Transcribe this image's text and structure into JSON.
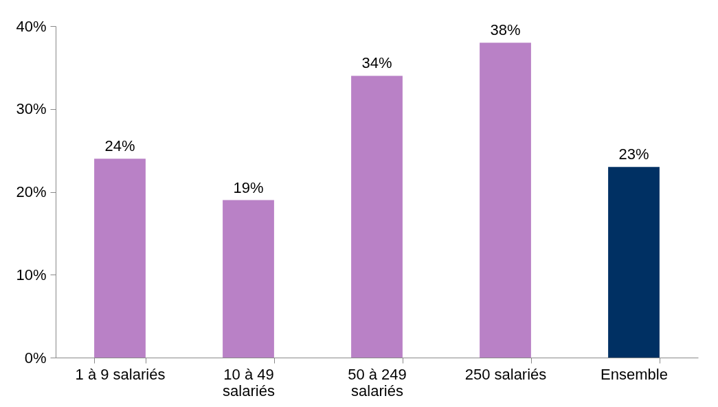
{
  "chart_data": {
    "type": "bar",
    "categories": [
      "1 à 9 salariés",
      "10 à 49 salariés",
      "50 à 249 salariés",
      "250 salariés",
      "Ensemble"
    ],
    "values": [
      24,
      19,
      34,
      38,
      23
    ],
    "colors": [
      "#b981c6",
      "#b981c6",
      "#b981c6",
      "#b981c6",
      "#003063"
    ],
    "value_labels": [
      "24%",
      "19%",
      "34%",
      "38%",
      "23%"
    ],
    "ylim": [
      0,
      40
    ],
    "yticks": [
      {
        "value": 0,
        "label": "0%"
      },
      {
        "value": 10,
        "label": "10%"
      },
      {
        "value": 20,
        "label": "20%"
      },
      {
        "value": 30,
        "label": "30%"
      },
      {
        "value": 40,
        "label": "40%"
      }
    ],
    "grid": false
  }
}
